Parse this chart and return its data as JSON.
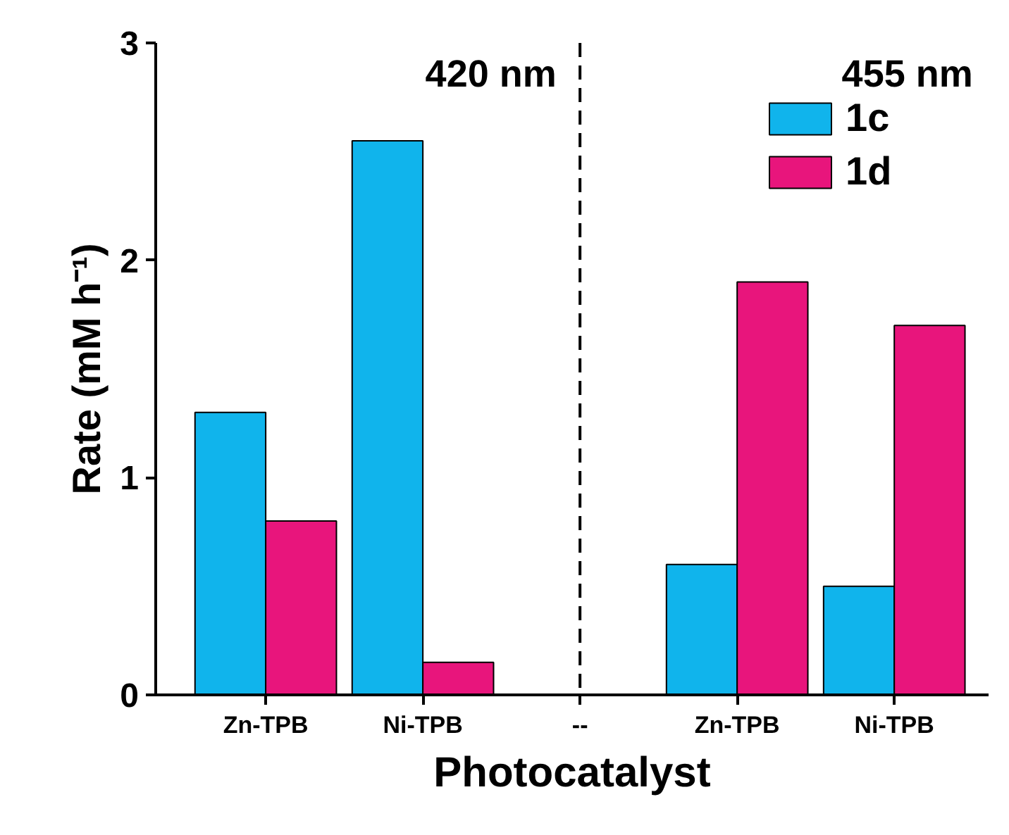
{
  "chart_data": {
    "type": "bar",
    "xlabel": "Photocatalyst",
    "ylabel": "Rate (mM h⁻¹)",
    "categories": [
      "Zn-TPB",
      "Ni-TPB",
      "--",
      "Zn-TPB",
      "Ni-TPB"
    ],
    "series": [
      {
        "name": "1c",
        "color": "#10b4ec",
        "values": [
          1.3,
          2.55,
          null,
          0.6,
          0.5
        ]
      },
      {
        "name": "1d",
        "color": "#e8157c",
        "values": [
          0.8,
          0.15,
          null,
          1.9,
          1.7
        ]
      }
    ],
    "ylim": [
      0,
      3
    ],
    "yticks": [
      0,
      1,
      2,
      3
    ],
    "grid": false,
    "legend": "top right",
    "ref_lines": [
      {
        "axis": "x",
        "value": "--",
        "line_style": "dashed",
        "color": "#000000"
      }
    ],
    "annotations": [
      "420 nm",
      "455 nm"
    ]
  }
}
